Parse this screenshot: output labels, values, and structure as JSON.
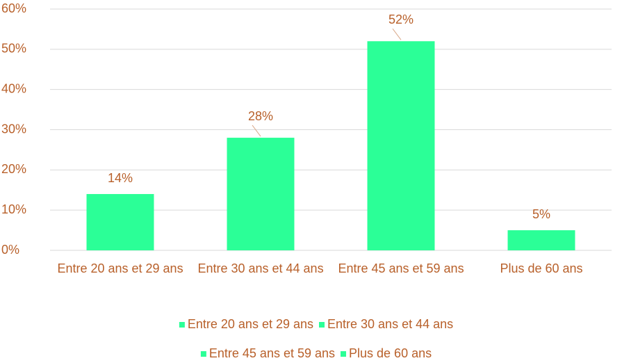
{
  "chart_data": {
    "type": "bar",
    "categories": [
      "Entre 20 ans et 29 ans",
      "Entre 30 ans et 44 ans",
      "Entre 45 ans et 59 ans",
      "Plus de 60 ans"
    ],
    "values": [
      14,
      28,
      52,
      5
    ],
    "value_labels": [
      "14%",
      "28%",
      "52%",
      "5%"
    ],
    "color": "#2bff97",
    "ylim": [
      0,
      60
    ],
    "yticks": [
      {
        "value": 0,
        "label": "0%"
      },
      {
        "value": 10,
        "label": "10%"
      },
      {
        "value": 20,
        "label": "20%"
      },
      {
        "value": 30,
        "label": "30%"
      },
      {
        "value": 40,
        "label": "40%"
      },
      {
        "value": 50,
        "label": "50%"
      },
      {
        "value": 60,
        "label": "60%"
      }
    ],
    "grid": true
  }
}
